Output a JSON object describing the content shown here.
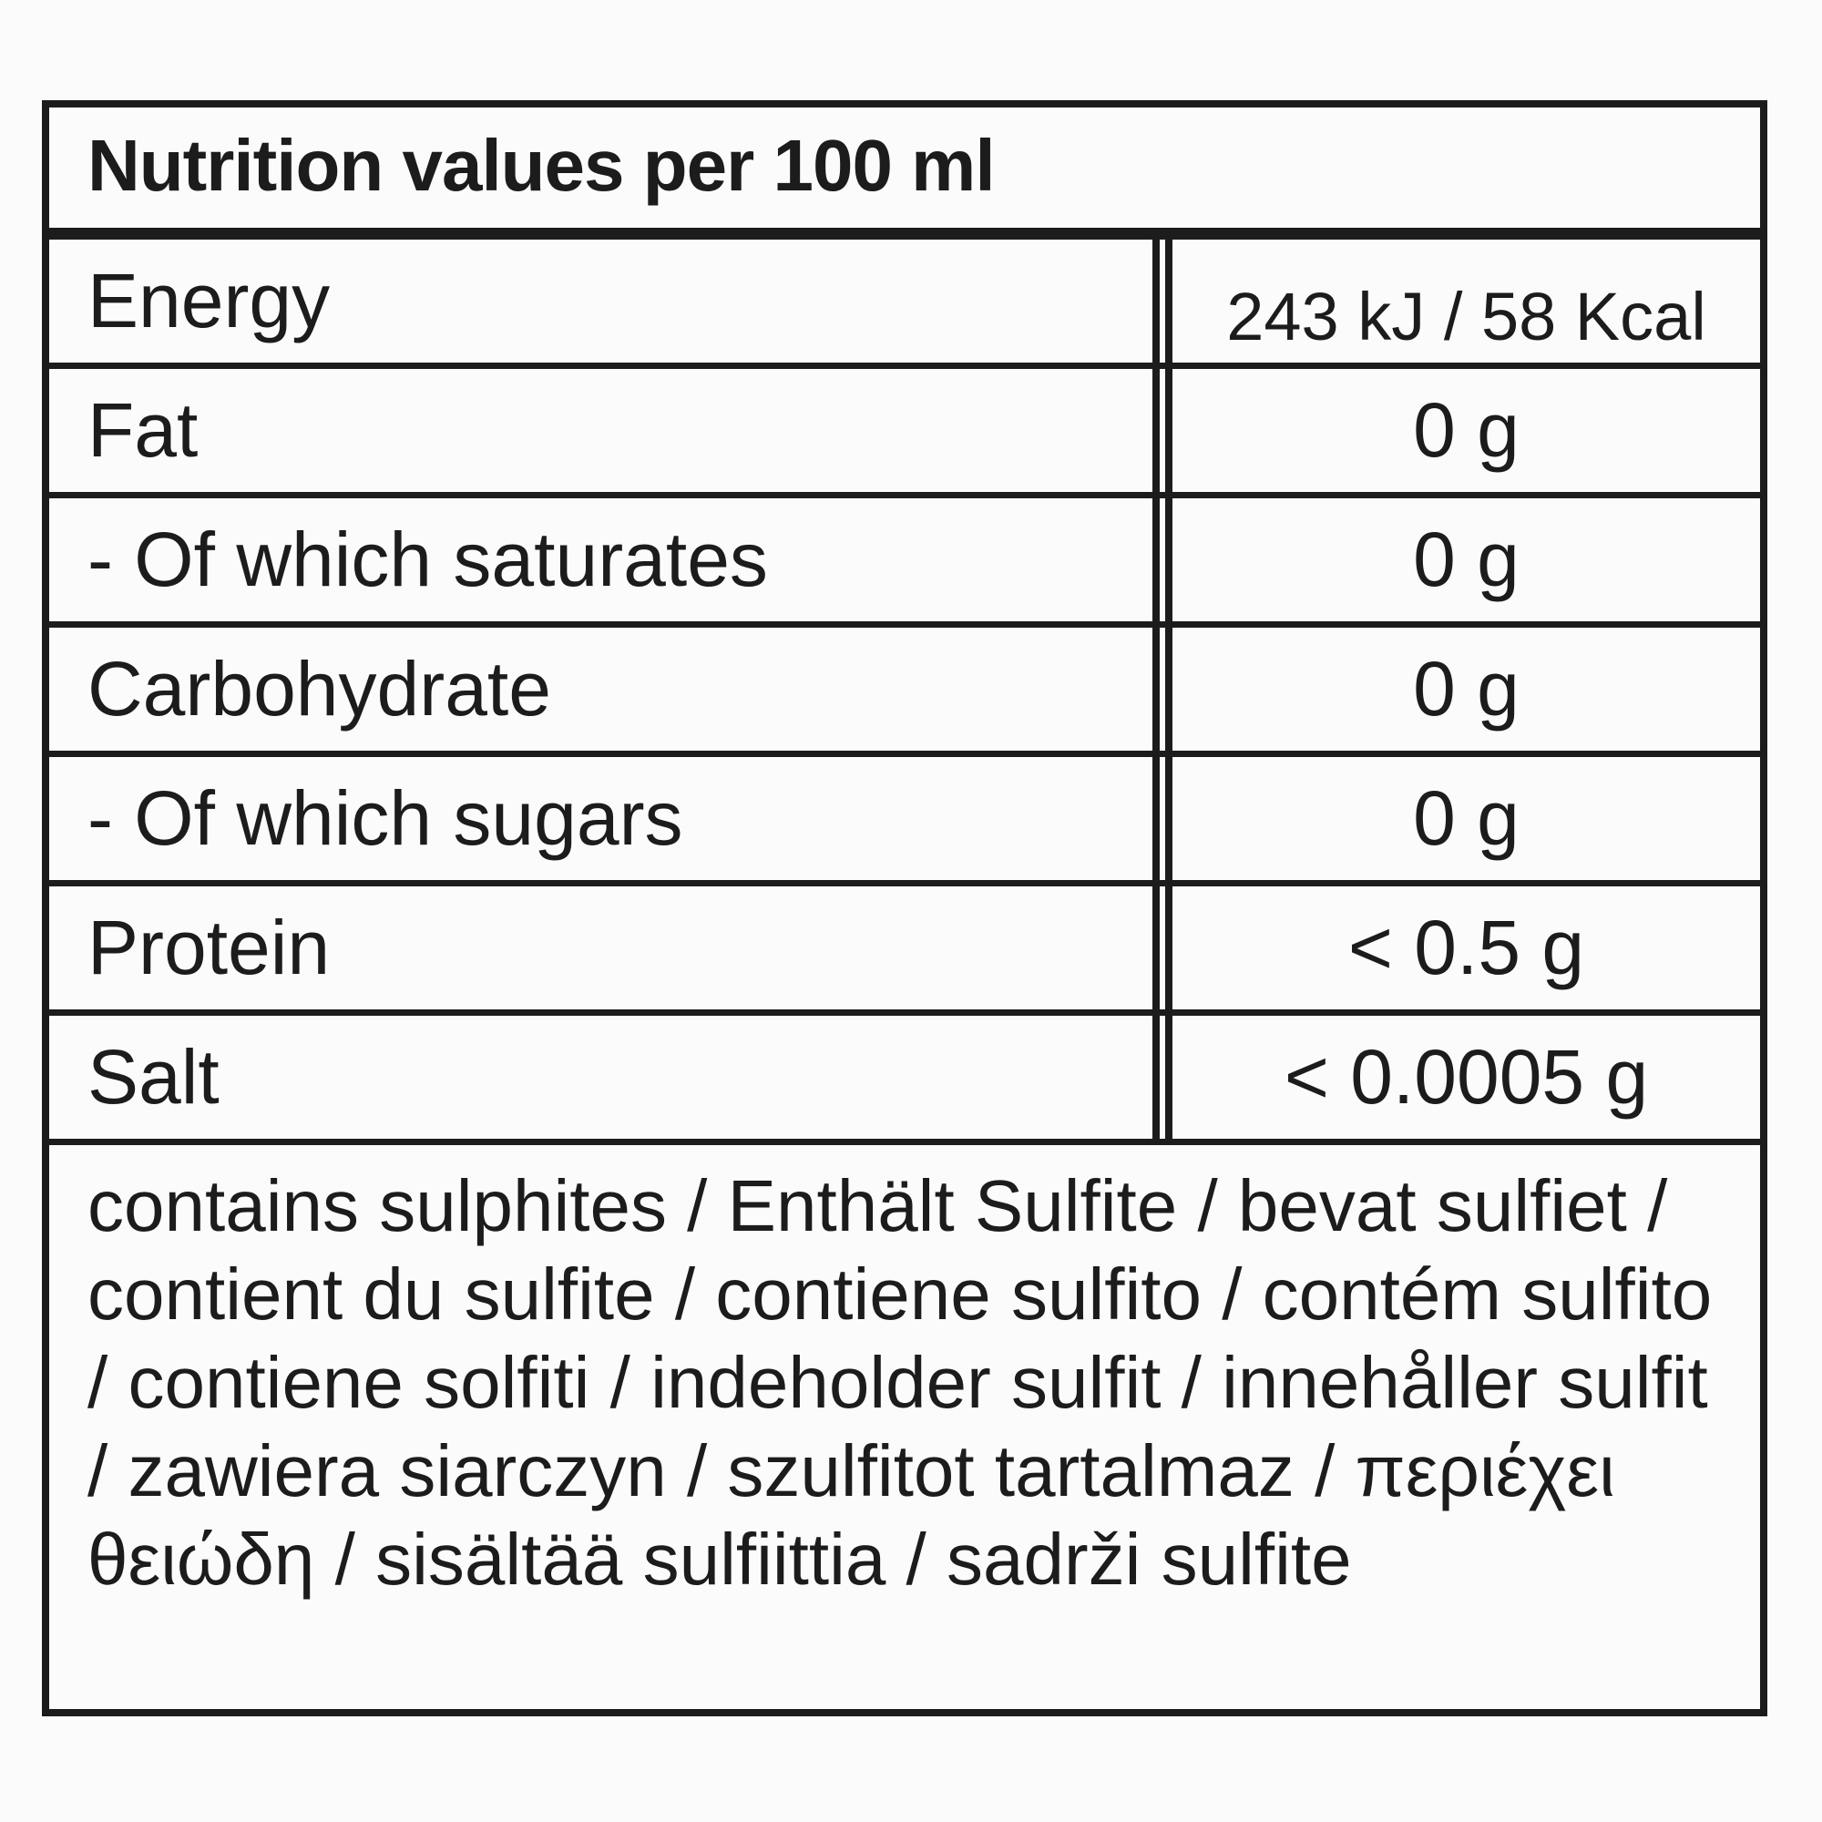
{
  "header": {
    "title": "Nutrition values per 100 ml"
  },
  "table": {
    "rows": [
      [
        "Energy",
        "243 kJ / 58 Kcal"
      ],
      [
        "Fat",
        "0 g"
      ],
      [
        "- Of which saturates",
        "0 g"
      ],
      [
        "Carbohydrate",
        "0 g"
      ],
      [
        "- Of which sugars",
        "0 g"
      ],
      [
        "Protein",
        "< 0.5 g"
      ],
      [
        "Salt",
        "< 0.0005 g"
      ]
    ]
  },
  "footer": {
    "text": "contains sulphites / Enthält Sulfite / bevat sulfiet / contient du sulfite / contiene sulfito / contém sulfito / contiene solfiti / indeholder sulfit / innehåller sulfit / zawiera siarczyn / szulfitot tartalmaz / περιέχει θειώδη / sisältää sulfiittia / sadrži sulfite"
  }
}
